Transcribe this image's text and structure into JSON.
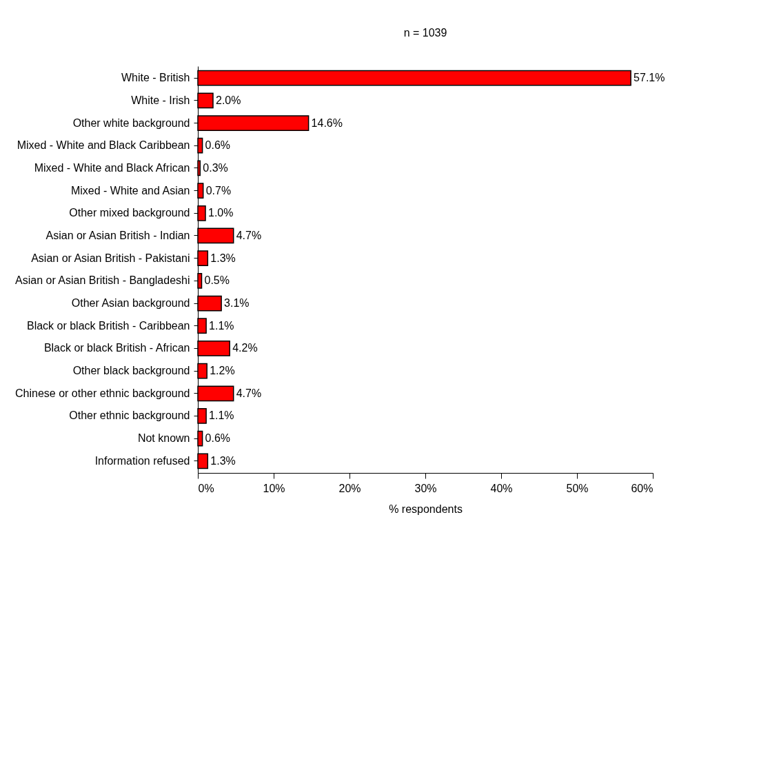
{
  "chart_data": {
    "type": "bar",
    "orientation": "horizontal",
    "title": "n = 1039",
    "xlabel": "% respondents",
    "categories": [
      "White - British",
      "White - Irish",
      "Other white background",
      "Mixed - White and Black Caribbean",
      "Mixed - White and Black African",
      "Mixed - White and Asian",
      "Other mixed background",
      "Asian or Asian British - Indian",
      "Asian or Asian British - Pakistani",
      "Asian or Asian British - Bangladeshi",
      "Other Asian background",
      "Black or black British - Caribbean",
      "Black or black British - African",
      "Other black background",
      "Chinese or other ethnic background",
      "Other ethnic background",
      "Not known",
      "Information refused"
    ],
    "values": [
      57.1,
      2.0,
      14.6,
      0.6,
      0.3,
      0.7,
      1.0,
      4.7,
      1.3,
      0.5,
      3.1,
      1.1,
      4.2,
      1.2,
      4.7,
      1.1,
      0.6,
      1.3
    ],
    "value_labels": [
      "57.1%",
      "2.0%",
      "14.6%",
      "0.6%",
      "0.3%",
      "0.7%",
      "1.0%",
      "4.7%",
      "1.3%",
      "0.5%",
      "3.1%",
      "1.1%",
      "4.2%",
      "1.2%",
      "4.7%",
      "1.1%",
      "0.6%",
      "1.3%"
    ],
    "color": "#ff0000",
    "xlim": [
      0,
      60
    ],
    "xticks": [
      {
        "value": 0,
        "label": "0%"
      },
      {
        "value": 10,
        "label": "10%"
      },
      {
        "value": 20,
        "label": "20%"
      },
      {
        "value": 30,
        "label": "30%"
      },
      {
        "value": 40,
        "label": "40%"
      },
      {
        "value": 50,
        "label": "50%"
      },
      {
        "value": 60,
        "label": "60%"
      }
    ],
    "grid": false
  }
}
